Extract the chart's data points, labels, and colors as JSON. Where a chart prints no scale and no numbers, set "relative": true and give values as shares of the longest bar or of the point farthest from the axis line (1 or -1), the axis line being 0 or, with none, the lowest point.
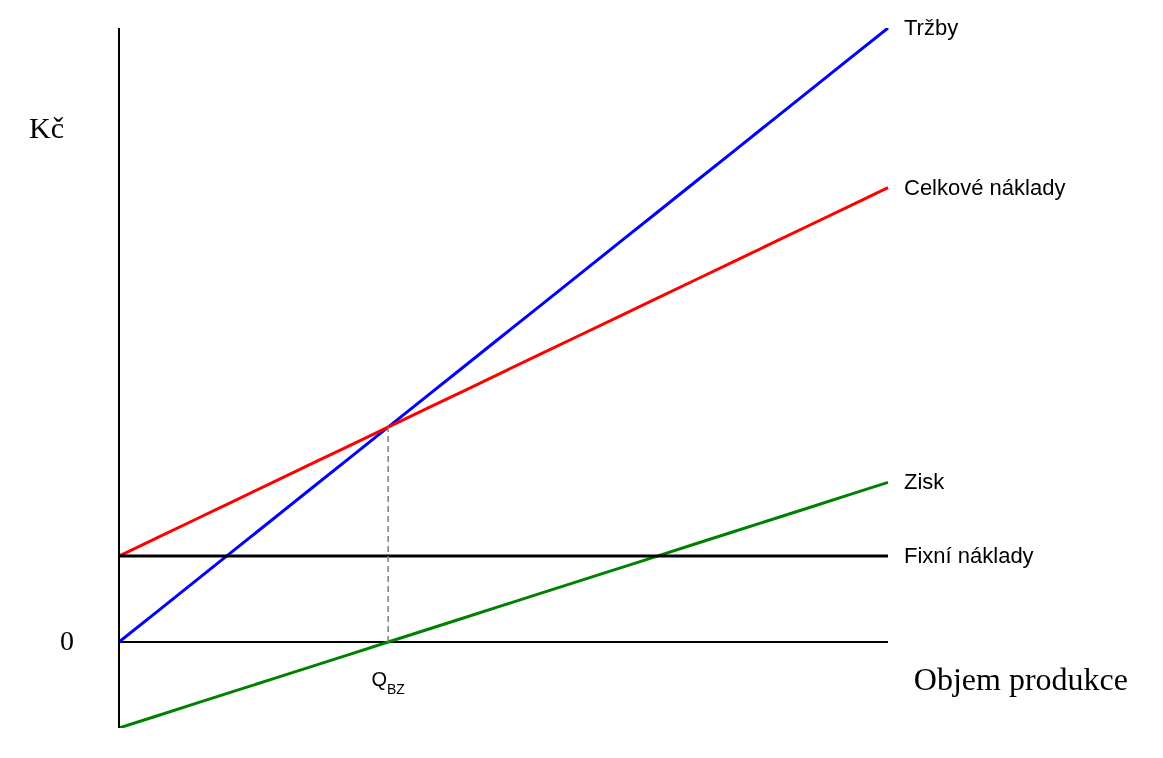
{
  "chart_data": {
    "type": "line",
    "relative": true,
    "xlabel": "Objem produkce",
    "ylabel": "Kč",
    "categories": [
      null,
      null,
      null,
      null,
      null,
      null,
      null,
      null,
      null,
      null,
      null,
      null,
      null,
      null,
      null,
      null,
      null,
      null,
      null,
      null,
      null
    ],
    "series": [
      {
        "name": "Tržby",
        "color": "#0000ff",
        "values": [
          0,
          0.05,
          0.1,
          0.15,
          0.2,
          0.25,
          0.3,
          0.35,
          0.4,
          0.45,
          0.5,
          0.55,
          0.6,
          0.65,
          0.7,
          0.75,
          0.8,
          0.85,
          0.9,
          0.95,
          1
        ]
      },
      {
        "name": "Celkové náklady",
        "color": "#ff0000",
        "values": [
          0.14,
          0.17,
          0.2,
          0.23,
          0.26,
          0.29,
          0.32,
          0.35,
          0.38,
          0.41,
          0.44,
          0.47,
          0.5,
          0.53,
          0.56,
          0.59,
          0.62,
          0.65,
          0.68,
          0.71,
          0.74
        ]
      },
      {
        "name": "Zisk",
        "color": "#008000",
        "values": [
          -0.14,
          -0.12,
          -0.1,
          -0.08,
          -0.06,
          -0.04,
          -0.02,
          0,
          0.02,
          0.04,
          0.06,
          0.08,
          0.1,
          0.12,
          0.14,
          0.16,
          0.18,
          0.2,
          0.22,
          0.24,
          0.26
        ]
      },
      {
        "name": "Fixní náklady",
        "color": "#000000",
        "values": [
          0.14,
          0.14,
          0.14,
          0.14,
          0.14,
          0.14,
          0.14,
          0.14,
          0.14,
          0.14,
          0.14,
          0.14,
          0.14,
          0.14,
          0.14,
          0.14,
          0.14,
          0.14,
          0.14,
          0.14,
          0.14
        ]
      }
    ],
    "annotations": [
      "Q$_{BZ}$",
      "0"
    ],
    "legend": false,
    "grid": false,
    "marker": "none",
    "line_style": "solid"
  }
}
